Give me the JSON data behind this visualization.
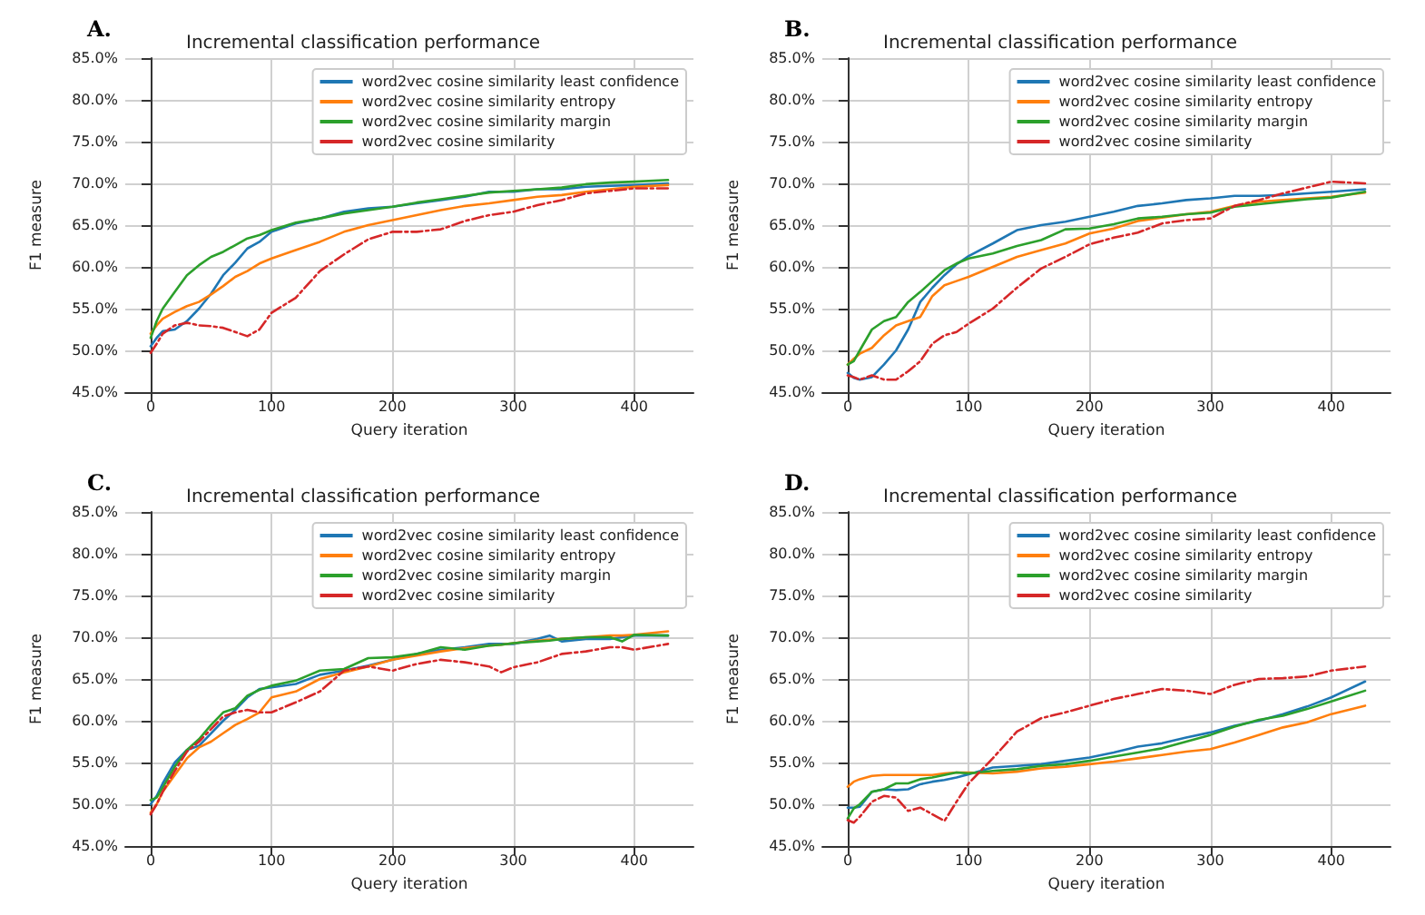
{
  "chart_data": [
    {
      "type": "line",
      "title": "Incremental classification performance",
      "xlabel": "Query iteration",
      "ylabel": "F1 measure",
      "annotations": [
        "A."
      ],
      "legend": "top right",
      "grid": true,
      "marker": "none",
      "xlim": [
        -21,
        449
      ],
      "xticks": [
        0,
        100,
        200,
        300,
        400
      ],
      "ylim": [
        45,
        85
      ],
      "yticks": [
        {
          "value": 45,
          "label": "45.0%"
        },
        {
          "value": 50,
          "label": "50.0%"
        },
        {
          "value": 55,
          "label": "55.0%"
        },
        {
          "value": 60,
          "label": "60.0%"
        },
        {
          "value": 65,
          "label": "65.0%"
        },
        {
          "value": 70,
          "label": "70.0%"
        },
        {
          "value": 75,
          "label": "75.0%"
        },
        {
          "value": 80,
          "label": "80.0%"
        },
        {
          "value": 85,
          "label": "85.0%"
        }
      ],
      "x": [
        0,
        5,
        10,
        20,
        30,
        40,
        50,
        60,
        70,
        80,
        90,
        100,
        120,
        140,
        160,
        180,
        200,
        220,
        240,
        260,
        280,
        300,
        320,
        340,
        360,
        380,
        400,
        428
      ],
      "series": [
        {
          "name": "word2vec cosine similarity least confidence",
          "color": "#1f77b4",
          "line_style": "solid",
          "values": [
            50.5,
            51.5,
            52.3,
            52.5,
            53.5,
            55,
            56.8,
            59,
            60.5,
            62.2,
            63,
            64.2,
            65.2,
            65.8,
            66.6,
            67,
            67.2,
            67.6,
            68,
            68.4,
            69,
            69,
            69.3,
            69.3,
            69.6,
            69.7,
            69.8,
            70
          ]
        },
        {
          "name": "word2vec cosine similarity entropy",
          "color": "#ff7f0e",
          "line_style": "solid",
          "values": [
            52,
            53,
            53.8,
            54.6,
            55.3,
            55.8,
            56.7,
            57.7,
            58.8,
            59.5,
            60.4,
            61,
            62,
            63,
            64.2,
            65,
            65.6,
            66.2,
            66.8,
            67.3,
            67.6,
            68,
            68.4,
            68.6,
            69,
            69.3,
            69.6,
            69.8
          ]
        },
        {
          "name": "word2vec cosine similarity margin",
          "color": "#2ca02c",
          "line_style": "solid",
          "values": [
            51.5,
            53.5,
            55,
            57,
            59,
            60.2,
            61.2,
            61.8,
            62.6,
            63.4,
            63.8,
            64.4,
            65.3,
            65.8,
            66.4,
            66.8,
            67.2,
            67.7,
            68.1,
            68.5,
            68.9,
            69.1,
            69.3,
            69.5,
            69.9,
            70.1,
            70.2,
            70.4
          ]
        },
        {
          "name": "word2vec cosine similarity",
          "color": "#d62728",
          "line_style": "dashed",
          "values": [
            49.7,
            50.8,
            52,
            53,
            53.3,
            53,
            52.9,
            52.7,
            52.2,
            51.7,
            52.5,
            54.5,
            56.3,
            59.5,
            61.5,
            63.3,
            64.2,
            64.2,
            64.5,
            65.5,
            66.2,
            66.6,
            67.4,
            68,
            68.8,
            69.1,
            69.4,
            69.4
          ]
        }
      ]
    },
    {
      "type": "line",
      "title": "Incremental classification performance",
      "xlabel": "Query iteration",
      "ylabel": "F1 measure",
      "annotations": [
        "B."
      ],
      "legend": "top right",
      "grid": true,
      "marker": "none",
      "xlim": [
        -21,
        449
      ],
      "xticks": [
        0,
        100,
        200,
        300,
        400
      ],
      "ylim": [
        45,
        85
      ],
      "yticks": [
        {
          "value": 45,
          "label": "45.0%"
        },
        {
          "value": 50,
          "label": "50.0%"
        },
        {
          "value": 55,
          "label": "55.0%"
        },
        {
          "value": 60,
          "label": "60.0%"
        },
        {
          "value": 65,
          "label": "65.0%"
        },
        {
          "value": 70,
          "label": "70.0%"
        },
        {
          "value": 75,
          "label": "75.0%"
        },
        {
          "value": 80,
          "label": "80.0%"
        },
        {
          "value": 85,
          "label": "85.0%"
        }
      ],
      "x": [
        0,
        5,
        10,
        20,
        30,
        40,
        50,
        60,
        70,
        80,
        90,
        100,
        120,
        140,
        160,
        180,
        200,
        220,
        240,
        260,
        280,
        300,
        320,
        340,
        360,
        380,
        400,
        428
      ],
      "series": [
        {
          "name": "word2vec cosine similarity least confidence",
          "color": "#1f77b4",
          "line_style": "solid",
          "values": [
            47.3,
            46.7,
            46.5,
            46.8,
            48.3,
            50,
            52.5,
            55.8,
            57.5,
            59,
            60.3,
            61.3,
            62.8,
            64.4,
            65,
            65.4,
            66,
            66.6,
            67.3,
            67.6,
            68,
            68.2,
            68.5,
            68.5,
            68.6,
            68.8,
            69,
            69.3
          ]
        },
        {
          "name": "word2vec cosine similarity entropy",
          "color": "#ff7f0e",
          "line_style": "solid",
          "values": [
            48.3,
            49,
            49.6,
            50.3,
            51.8,
            53,
            53.5,
            54,
            56.5,
            57.8,
            58.3,
            58.8,
            60,
            61.2,
            62,
            62.8,
            64,
            64.6,
            65.5,
            65.9,
            66.3,
            66.6,
            67.3,
            67.8,
            68,
            68.2,
            68.4,
            68.9
          ]
        },
        {
          "name": "word2vec cosine similarity margin",
          "color": "#2ca02c",
          "line_style": "solid",
          "values": [
            48.3,
            48.7,
            50,
            52.5,
            53.5,
            54,
            55.8,
            57,
            58.3,
            59.6,
            60.4,
            61,
            61.6,
            62.5,
            63.2,
            64.5,
            64.6,
            65.1,
            65.8,
            66,
            66.3,
            66.5,
            67.2,
            67.5,
            67.8,
            68.1,
            68.3,
            69
          ]
        },
        {
          "name": "word2vec cosine similarity",
          "color": "#d62728",
          "line_style": "dashed",
          "values": [
            47,
            46.8,
            46.5,
            47,
            46.5,
            46.5,
            47.5,
            48.7,
            50.8,
            51.8,
            52.2,
            53.2,
            55,
            57.5,
            59.8,
            61.2,
            62.7,
            63.5,
            64.1,
            65.2,
            65.6,
            65.8,
            67.3,
            68,
            68.8,
            69.5,
            70.2,
            70
          ]
        }
      ]
    },
    {
      "type": "line",
      "title": "Incremental classification performance",
      "xlabel": "Query iteration",
      "ylabel": "F1 measure",
      "annotations": [
        "C."
      ],
      "legend": "top right",
      "grid": true,
      "marker": "none",
      "xlim": [
        -21,
        449
      ],
      "xticks": [
        0,
        100,
        200,
        300,
        400
      ],
      "ylim": [
        45,
        85
      ],
      "yticks": [
        {
          "value": 45,
          "label": "45.0%"
        },
        {
          "value": 50,
          "label": "50.0%"
        },
        {
          "value": 55,
          "label": "55.0%"
        },
        {
          "value": 60,
          "label": "60.0%"
        },
        {
          "value": 65,
          "label": "65.0%"
        },
        {
          "value": 70,
          "label": "70.0%"
        },
        {
          "value": 75,
          "label": "75.0%"
        },
        {
          "value": 80,
          "label": "80.0%"
        },
        {
          "value": 85,
          "label": "85.0%"
        }
      ],
      "x": [
        0,
        5,
        10,
        20,
        30,
        40,
        50,
        60,
        70,
        80,
        90,
        100,
        120,
        140,
        160,
        180,
        200,
        220,
        240,
        260,
        280,
        290,
        300,
        320,
        330,
        340,
        360,
        380,
        390,
        400,
        428
      ],
      "series": [
        {
          "name": "word2vec cosine similarity least confidence",
          "color": "#1f77b4",
          "line_style": "solid",
          "values": [
            50,
            51,
            52.5,
            55,
            56.5,
            57,
            58.5,
            60,
            61.3,
            62.8,
            63.8,
            64,
            64.4,
            65.5,
            66,
            66.6,
            67.3,
            68,
            68.5,
            68.8,
            69.2,
            69.2,
            69.2,
            69.8,
            70.2,
            69.5,
            69.8,
            69.8,
            70,
            70.2,
            70.2
          ]
        },
        {
          "name": "word2vec cosine similarity entropy",
          "color": "#ff7f0e",
          "line_style": "solid",
          "values": [
            49,
            50,
            51.5,
            53.5,
            55.5,
            56.8,
            57.5,
            58.5,
            59.5,
            60.2,
            61,
            62.8,
            63.5,
            65,
            65.8,
            66.5,
            67.3,
            67.8,
            68.3,
            68.7,
            69,
            69.1,
            69.3,
            69.6,
            69.7,
            69.8,
            70,
            70.2,
            70.2,
            70.3,
            70.7
          ]
        },
        {
          "name": "word2vec cosine similarity margin",
          "color": "#2ca02c",
          "line_style": "solid",
          "values": [
            50.5,
            50.8,
            52,
            54.5,
            56.5,
            57.8,
            59.5,
            61,
            61.5,
            63,
            63.7,
            64.2,
            64.8,
            66,
            66.2,
            67.5,
            67.6,
            68,
            68.8,
            68.5,
            69,
            69.1,
            69.3,
            69.5,
            69.6,
            69.8,
            70,
            70,
            69.5,
            70.3,
            70.2
          ]
        },
        {
          "name": "word2vec cosine similarity",
          "color": "#d62728",
          "line_style": "dashed",
          "values": [
            48.8,
            50,
            51.5,
            54,
            56.3,
            57.5,
            59,
            60.5,
            61,
            61.3,
            61,
            61,
            62.2,
            63.5,
            66,
            66.5,
            66,
            66.8,
            67.3,
            67,
            66.5,
            65.8,
            66.4,
            67,
            67.5,
            68,
            68.3,
            68.8,
            68.8,
            68.5,
            69.2
          ]
        }
      ]
    },
    {
      "type": "line",
      "title": "Incremental classification performance",
      "xlabel": "Query iteration",
      "ylabel": "F1 measure",
      "annotations": [
        "D."
      ],
      "legend": "top right",
      "grid": true,
      "marker": "none",
      "xlim": [
        -21,
        449
      ],
      "xticks": [
        0,
        100,
        200,
        300,
        400
      ],
      "ylim": [
        45,
        85
      ],
      "yticks": [
        {
          "value": 45,
          "label": "45.0%"
        },
        {
          "value": 50,
          "label": "50.0%"
        },
        {
          "value": 55,
          "label": "55.0%"
        },
        {
          "value": 60,
          "label": "60.0%"
        },
        {
          "value": 65,
          "label": "65.0%"
        },
        {
          "value": 70,
          "label": "70.0%"
        },
        {
          "value": 75,
          "label": "75.0%"
        },
        {
          "value": 80,
          "label": "80.0%"
        },
        {
          "value": 85,
          "label": "85.0%"
        }
      ],
      "x": [
        0,
        5,
        10,
        20,
        30,
        40,
        50,
        60,
        70,
        80,
        90,
        100,
        120,
        140,
        160,
        180,
        200,
        220,
        240,
        260,
        280,
        300,
        320,
        340,
        360,
        380,
        400,
        428
      ],
      "series": [
        {
          "name": "word2vec cosine similarity least confidence",
          "color": "#1f77b4",
          "line_style": "solid",
          "values": [
            49.6,
            49.6,
            49.7,
            51.5,
            51.8,
            51.7,
            51.8,
            52.4,
            52.7,
            52.9,
            53.2,
            53.6,
            54.4,
            54.6,
            54.8,
            55.2,
            55.6,
            56.2,
            56.9,
            57.3,
            58,
            58.6,
            59.4,
            60,
            60.8,
            61.7,
            62.8,
            64.7
          ]
        },
        {
          "name": "word2vec cosine similarity entropy",
          "color": "#ff7f0e",
          "line_style": "solid",
          "values": [
            52.1,
            52.7,
            53,
            53.4,
            53.5,
            53.5,
            53.5,
            53.5,
            53.5,
            53.7,
            53.8,
            53.8,
            53.7,
            53.9,
            54.3,
            54.5,
            54.8,
            55.1,
            55.5,
            55.9,
            56.3,
            56.6,
            57.4,
            58.3,
            59.2,
            59.8,
            60.8,
            61.8
          ]
        },
        {
          "name": "word2vec cosine similarity margin",
          "color": "#2ca02c",
          "line_style": "solid",
          "values": [
            48.3,
            49.5,
            50,
            51.5,
            51.8,
            52.5,
            52.5,
            53,
            53.2,
            53.5,
            53.8,
            53.7,
            54,
            54.2,
            54.6,
            54.8,
            55.2,
            55.7,
            56.2,
            56.7,
            57.5,
            58.3,
            59.3,
            60.1,
            60.6,
            61.4,
            62.3,
            63.6
          ]
        },
        {
          "name": "word2vec cosine similarity",
          "color": "#d62728",
          "line_style": "dashed",
          "values": [
            48.1,
            47.8,
            48.5,
            50.3,
            51,
            50.8,
            49.2,
            49.6,
            48.8,
            48,
            50.3,
            52.5,
            55.5,
            58.7,
            60.3,
            61,
            61.8,
            62.6,
            63.2,
            63.8,
            63.6,
            63.2,
            64.3,
            65,
            65.1,
            65.3,
            66,
            66.5
          ]
        }
      ]
    }
  ]
}
